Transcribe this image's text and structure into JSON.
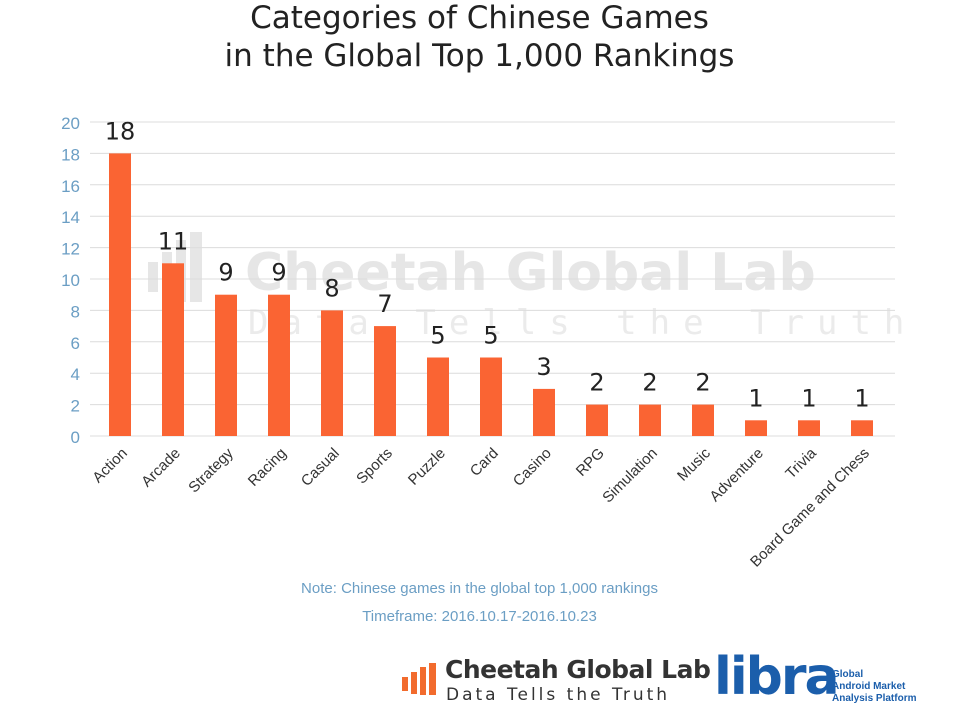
{
  "title": {
    "line1": "Categories of Chinese Games",
    "line2": "in the Global Top 1,000 Rankings"
  },
  "watermark": {
    "name": "Cheetah Global Lab",
    "tagline": "Data Tells the Truth"
  },
  "notes": {
    "note": "Note: Chinese games in the global top 1,000 rankings",
    "timeframe": "Timeframe: 2016.10.17-2016.10.23"
  },
  "footer": {
    "cheetah_name": "Cheetah Global Lab",
    "cheetah_tagline": "Data Tells the Truth",
    "libra_word": "libra",
    "libra_sub": [
      "Global",
      "Android Market",
      "Analysis Platform"
    ]
  },
  "colors": {
    "bar": "#fa6433",
    "axis_tick": "#6b9ec4",
    "grid": "#dcdcdc",
    "logo_orange": "#f26b2d",
    "libra_blue": "#1b5eab"
  },
  "chart_data": {
    "type": "bar",
    "title": "Categories of Chinese Games in the Global Top 1,000 Rankings",
    "categories": [
      "Action",
      "Arcade",
      "Strategy",
      "Racing",
      "Casual",
      "Sports",
      "Puzzle",
      "Card",
      "Casino",
      "RPG",
      "Simulation",
      "Music",
      "Adventure",
      "Trivia",
      "Board Game and Chess"
    ],
    "values": [
      18,
      11,
      9,
      9,
      8,
      7,
      5,
      5,
      3,
      2,
      2,
      2,
      1,
      1,
      1
    ],
    "ylim": [
      0,
      20
    ],
    "yticks": [
      0,
      2,
      4,
      6,
      8,
      10,
      12,
      14,
      16,
      18,
      20
    ],
    "grid": true,
    "data_labels": true
  }
}
